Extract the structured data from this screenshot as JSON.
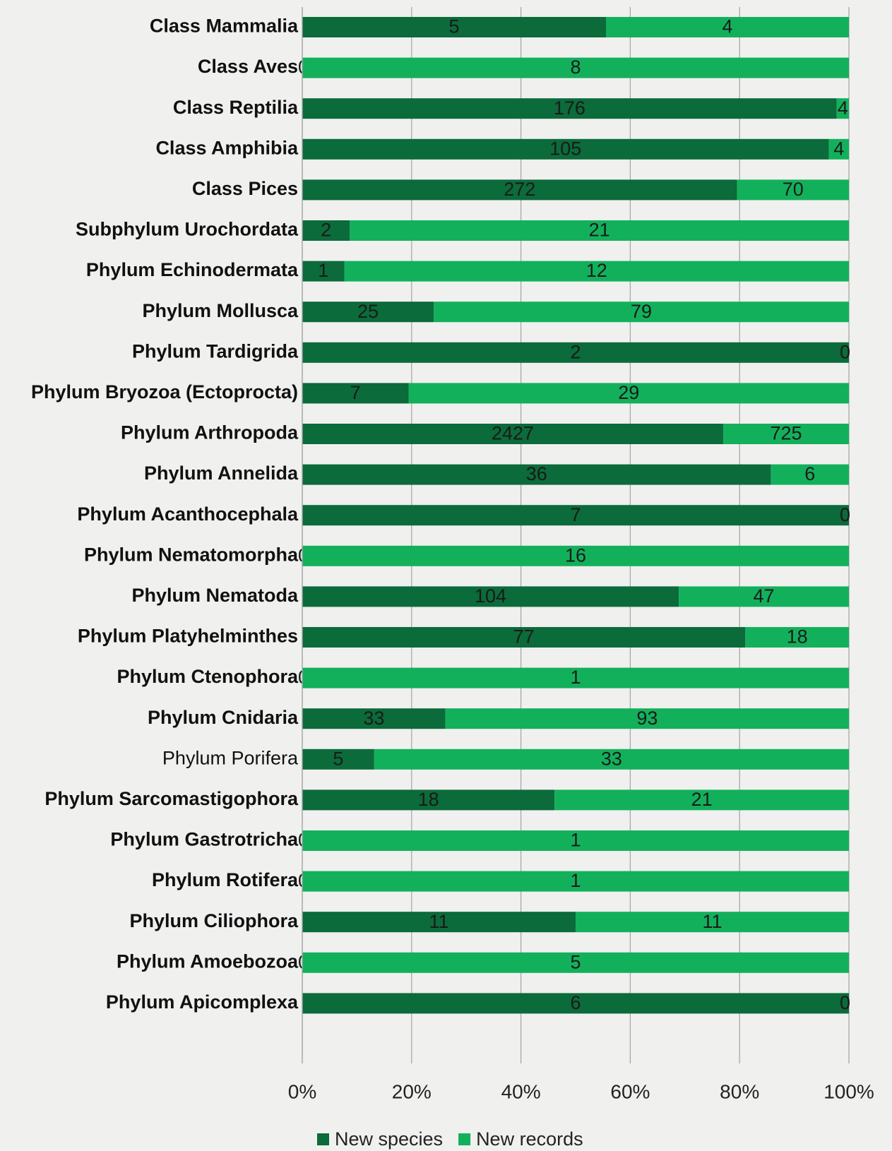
{
  "chart_data": {
    "type": "bar",
    "orientation": "horizontal",
    "stack": "percent",
    "categories": [
      "Class Mammalia",
      "Class Aves",
      "Class Reptilia",
      "Class Amphibia",
      "Class Pices",
      "Subphylum Urochordata",
      "Phylum Echinodermata",
      "Phylum Mollusca",
      "Phylum Tardigrida",
      "Phylum Bryozoa (Ectoprocta)",
      "Phylum Arthropoda",
      "Phylum Annelida",
      "Phylum Acanthocephala",
      "Phylum Nematomorpha",
      "Phylum Nematoda",
      "Phylum Platyhelminthes",
      "Phylum Ctenophora",
      "Phylum Cnidaria",
      "Phylum Porifera",
      "Phylum Sarcomastigophora",
      "Phylum Gastrotricha",
      "Phylum Rotifera",
      "Phylum Ciliophora",
      "Phylum Amoebozoa",
      "Phylum Apicomplexa"
    ],
    "series": [
      {
        "name": "New species",
        "color": "#0b6b3a",
        "values": [
          5,
          0,
          176,
          105,
          272,
          2,
          1,
          25,
          2,
          7,
          2427,
          36,
          7,
          0,
          104,
          77,
          0,
          33,
          5,
          18,
          0,
          0,
          11,
          0,
          6
        ]
      },
      {
        "name": "New records",
        "color": "#13b05c",
        "values": [
          4,
          8,
          4,
          4,
          70,
          21,
          12,
          79,
          0,
          29,
          725,
          6,
          0,
          16,
          47,
          18,
          1,
          93,
          33,
          21,
          1,
          1,
          11,
          5,
          0
        ]
      }
    ],
    "xlim": [
      0,
      100
    ],
    "xticks": [
      {
        "value": 0,
        "label": "0%"
      },
      {
        "value": 20,
        "label": "20%"
      },
      {
        "value": 40,
        "label": "40%"
      },
      {
        "value": 60,
        "label": "60%"
      },
      {
        "value": 80,
        "label": "80%"
      },
      {
        "value": 100,
        "label": "100%"
      }
    ],
    "grid": true,
    "legend": "bottom"
  }
}
